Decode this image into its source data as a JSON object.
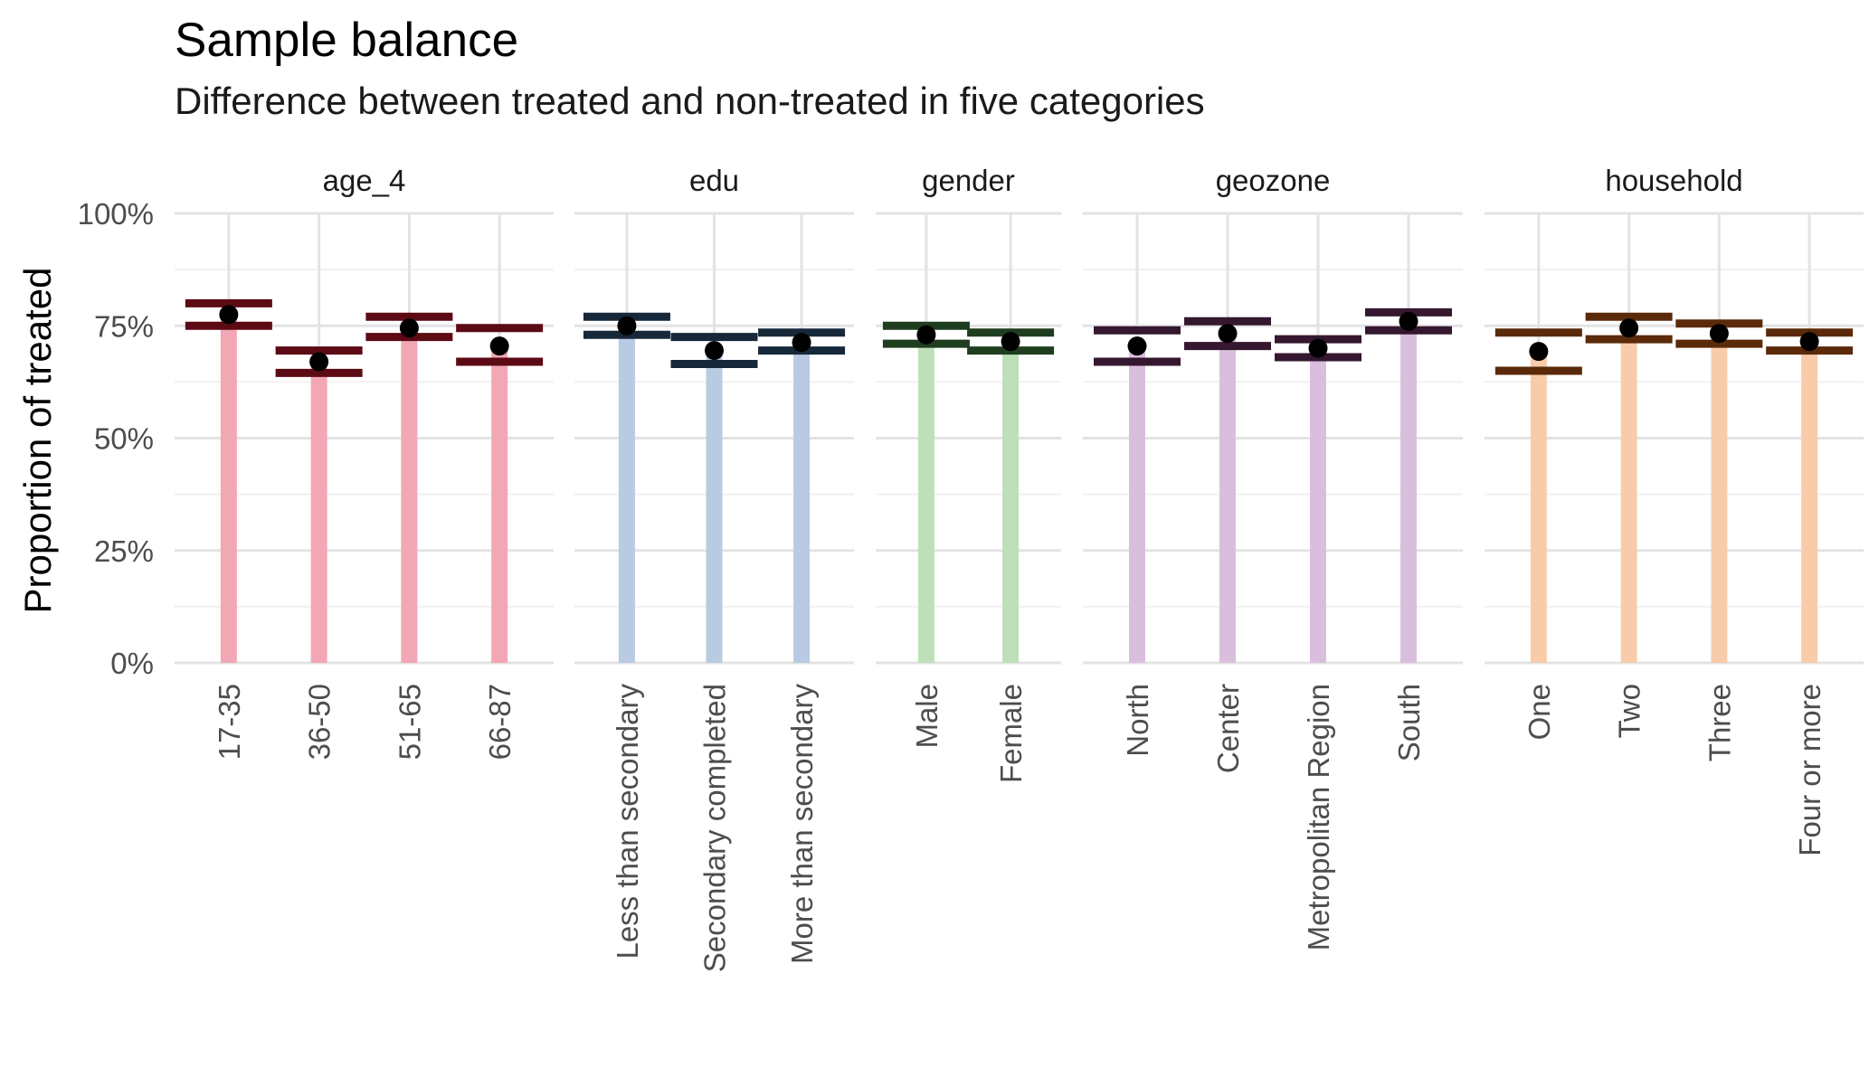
{
  "chart_data": {
    "type": "errorbar",
    "title": "Sample balance",
    "subtitle": "Difference between treated and non-treated in five categories",
    "ylabel": "Proportion of treated",
    "xlabel": "",
    "ylim": [
      0,
      1
    ],
    "yticks": [
      {
        "value": 0,
        "label": "0%"
      },
      {
        "value": 0.25,
        "label": "25%"
      },
      {
        "value": 0.5,
        "label": "50%"
      },
      {
        "value": 0.75,
        "label": "75%"
      },
      {
        "value": 1,
        "label": "100%"
      }
    ],
    "grid": true,
    "legend": "none",
    "facets": [
      {
        "name": "age_4",
        "bar_color": "#f2a7b4",
        "err_color": "#5c0a14",
        "categories": [
          "17-35",
          "36-50",
          "51-65",
          "66-87"
        ],
        "values": [
          0.775,
          0.67,
          0.745,
          0.705
        ],
        "lower": [
          0.75,
          0.645,
          0.725,
          0.67
        ],
        "upper": [
          0.8,
          0.695,
          0.77,
          0.745
        ]
      },
      {
        "name": "edu",
        "bar_color": "#b9cbe2",
        "err_color": "#16283a",
        "categories": [
          "Less than secondary",
          "Secondary completed",
          "More than secondary"
        ],
        "values": [
          0.75,
          0.695,
          0.713
        ],
        "lower": [
          0.73,
          0.665,
          0.695
        ],
        "upper": [
          0.77,
          0.725,
          0.735
        ]
      },
      {
        "name": "gender",
        "bar_color": "#bde0b9",
        "err_color": "#1f3d1f",
        "categories": [
          "Male",
          "Female"
        ],
        "values": [
          0.73,
          0.715
        ],
        "lower": [
          0.71,
          0.695
        ],
        "upper": [
          0.75,
          0.735
        ]
      },
      {
        "name": "geozone",
        "bar_color": "#d9bfdd",
        "err_color": "#35182f",
        "categories": [
          "North",
          "Center",
          "Metropolitan Region",
          "South"
        ],
        "values": [
          0.705,
          0.733,
          0.7,
          0.76
        ],
        "lower": [
          0.67,
          0.705,
          0.68,
          0.74
        ],
        "upper": [
          0.74,
          0.76,
          0.72,
          0.78
        ]
      },
      {
        "name": "household",
        "bar_color": "#f8ccaa",
        "err_color": "#5a2a0a",
        "categories": [
          "One",
          "Two",
          "Three",
          "Four or more"
        ],
        "values": [
          0.693,
          0.745,
          0.733,
          0.715
        ],
        "lower": [
          0.65,
          0.72,
          0.71,
          0.695
        ],
        "upper": [
          0.735,
          0.77,
          0.755,
          0.735
        ]
      }
    ]
  }
}
